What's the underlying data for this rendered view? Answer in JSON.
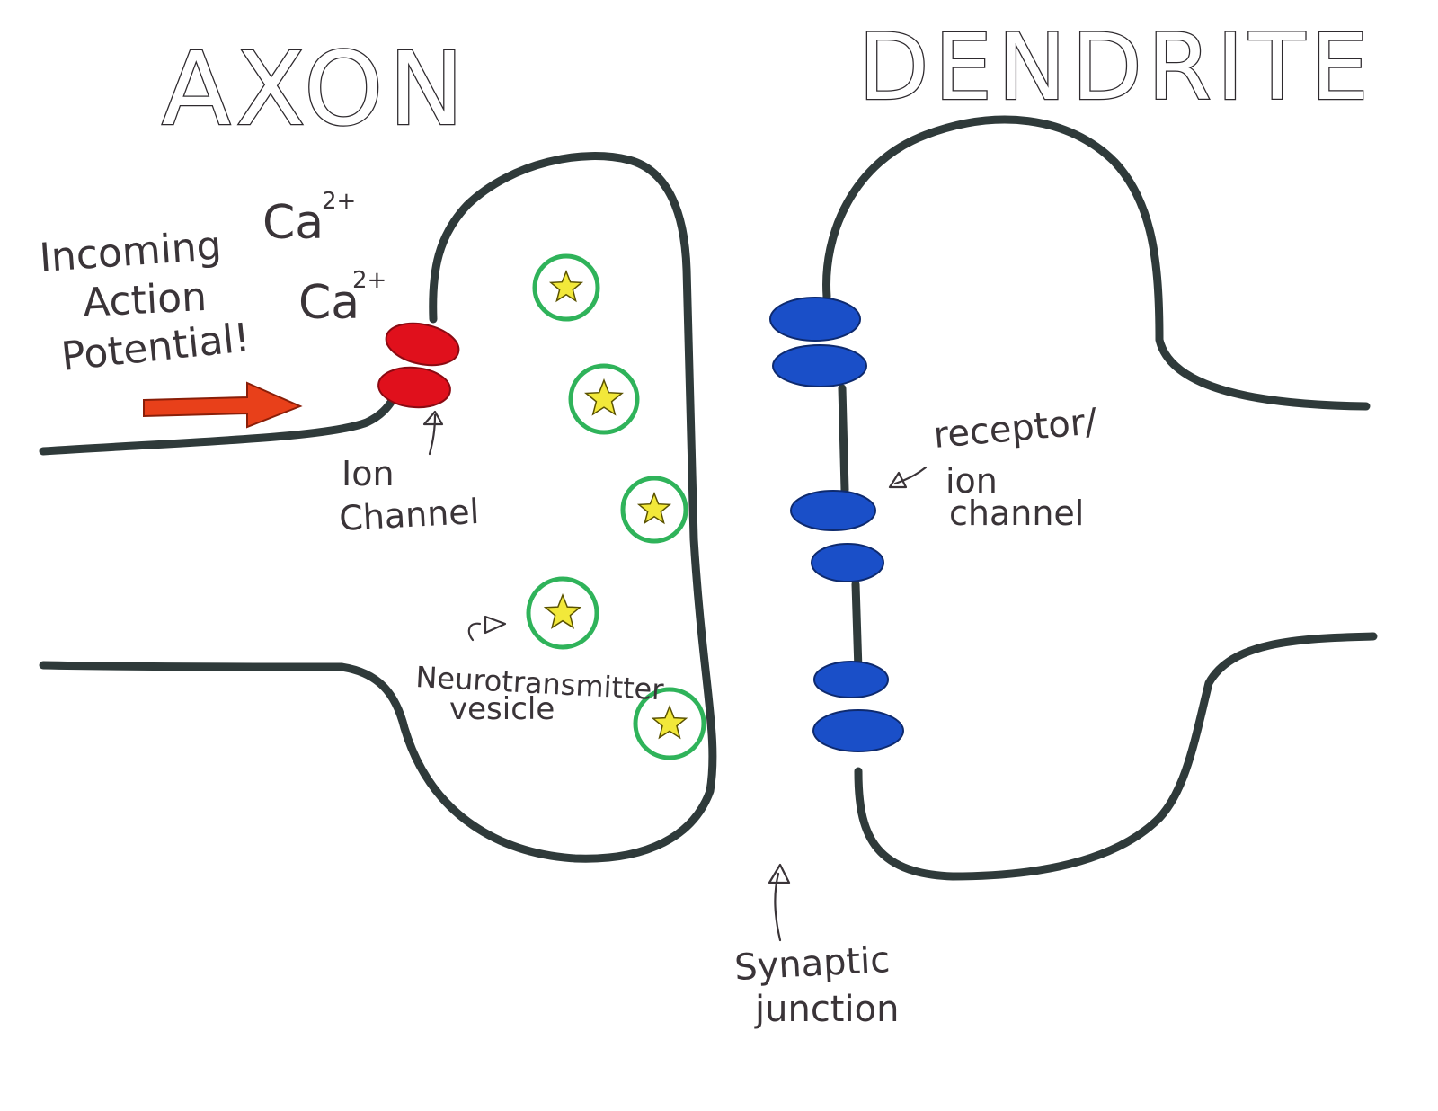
{
  "titles": {
    "axon": "AXON",
    "dendrite": "DENDRITE"
  },
  "labels": {
    "incoming_1": "Incoming",
    "incoming_2": "Action",
    "incoming_3": "Potential!",
    "calcium_base": "Ca",
    "calcium_charge": "2+",
    "ion_channel_1": "Ion",
    "ion_channel_2": "Channel",
    "receptor_1": "receptor/",
    "receptor_2": "ion",
    "receptor_3": "channel",
    "vesicle_1": "Neurotransmitter",
    "vesicle_2": "vesicle",
    "synaptic_1": "Synaptic",
    "synaptic_2": "junction"
  },
  "colors": {
    "membrane": "#2f3a3a",
    "ion_channel": "#e0101c",
    "receptor": "#1a4fc8",
    "vesicle_ring": "#2fb35a",
    "neurotransmitter": "#f2e83a",
    "arrow": "#e8401a",
    "ink": "#3a3438"
  },
  "icons": {
    "arrow": "right-arrow",
    "neurotransmitter": "star"
  }
}
